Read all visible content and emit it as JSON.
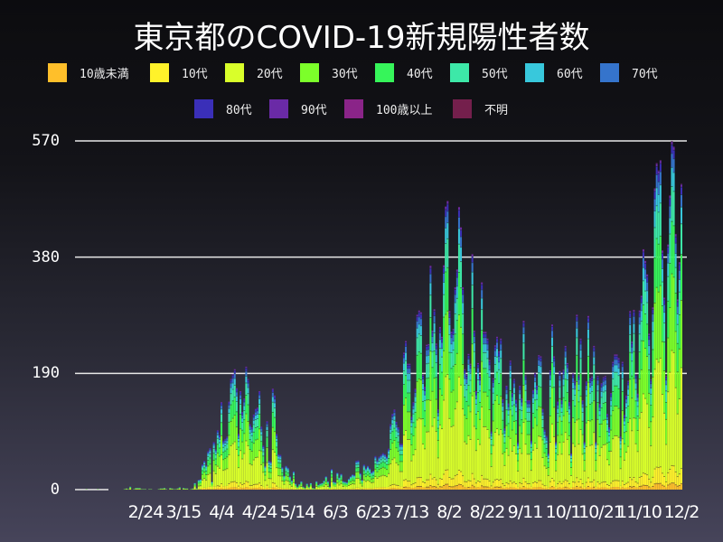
{
  "chart_data": {
    "type": "bar",
    "stacked": true,
    "title": "東京都のCOVID-19新規陽性者数",
    "xlabel": "",
    "ylabel": "",
    "first_date": "1/24",
    "last_date": "12/2",
    "ylim": [
      0,
      570
    ],
    "yticks": [
      "570",
      "380",
      "190",
      "0"
    ],
    "ytick_values": [
      570,
      380,
      190,
      0
    ],
    "xticks": [
      "2/24",
      "3/15",
      "4/4",
      "4/24",
      "5/14",
      "6/3",
      "6/23",
      "7/13",
      "8/2",
      "8/22",
      "9/11",
      "10/1",
      "10/21",
      "11/10",
      "12/2"
    ],
    "grid": "horizontal",
    "legend_position": "top",
    "totals": [
      1,
      0,
      0,
      0,
      0,
      0,
      1,
      0,
      0,
      0,
      0,
      0,
      0,
      0,
      0,
      0,
      0,
      0,
      0,
      0,
      1,
      2,
      1,
      5,
      0,
      1,
      3,
      3,
      3,
      1,
      1,
      1,
      0,
      1,
      1,
      0,
      0,
      0,
      1,
      2,
      2,
      3,
      1,
      0,
      3,
      2,
      1,
      1,
      2,
      4,
      0,
      3,
      2,
      2,
      0,
      1,
      2,
      11,
      2,
      16,
      17,
      41,
      47,
      40,
      63,
      68,
      13,
      78,
      66,
      97,
      89,
      143,
      80,
      83,
      87,
      144,
      181,
      189,
      197,
      166,
      91,
      161,
      127,
      149,
      201,
      181,
      107,
      102,
      123,
      132,
      134,
      161,
      103,
      72,
      39,
      112,
      47,
      46,
      165,
      154,
      91,
      58,
      57,
      37,
      23,
      39,
      36,
      22,
      15,
      30,
      10,
      5,
      9,
      14,
      5,
      3,
      10,
      5,
      11,
      3,
      2,
      14,
      8,
      10,
      11,
      15,
      22,
      14,
      5,
      34,
      13,
      12,
      28,
      20,
      26,
      14,
      13,
      12,
      18,
      22,
      25,
      24,
      47,
      48,
      27,
      16,
      41,
      35,
      39,
      35,
      29,
      31,
      55,
      48,
      54,
      57,
      60,
      58,
      54,
      67,
      107,
      124,
      131,
      111,
      102,
      75,
      75,
      224,
      243,
      206,
      206,
      119,
      143,
      165,
      286,
      293,
      290,
      188,
      168,
      237,
      238,
      366,
      260,
      295,
      239,
      131,
      266,
      250,
      367,
      463,
      472,
      292,
      258,
      263,
      331,
      360,
      462,
      429,
      331,
      197,
      188,
      222,
      206,
      385,
      260,
      161,
      207,
      186,
      339,
      258,
      258,
      247,
      212,
      95,
      182,
      236,
      250,
      226,
      247,
      148,
      100,
      170,
      141,
      211,
      158,
      181,
      147,
      77,
      170,
      149,
      276,
      187,
      146,
      146,
      80,
      163,
      191,
      170,
      220,
      218,
      132,
      98,
      88,
      59,
      195,
      270,
      218,
      78,
      144,
      194,
      146,
      196,
      235,
      207,
      143,
      59,
      190,
      178,
      286,
      187,
      247,
      146,
      78,
      177,
      284,
      182,
      185,
      235,
      78,
      186,
      140,
      174,
      184,
      186,
      124,
      102,
      158,
      209,
      221,
      221,
      215,
      87,
      209,
      122,
      154,
      178,
      292,
      242,
      294,
      189,
      157,
      293,
      317,
      393,
      374,
      352,
      255,
      180,
      298,
      493,
      534,
      522,
      539,
      391,
      314,
      186,
      401,
      481,
      570,
      561,
      418,
      311,
      372,
      500
    ],
    "series": [
      {
        "name": "10歳未満",
        "color": "#ffbf2a",
        "share": 0.02
      },
      {
        "name": "10代",
        "color": "#fff22a",
        "share": 0.05
      },
      {
        "name": "20代",
        "color": "#d9ff2a",
        "share": 0.33
      },
      {
        "name": "30代",
        "color": "#7cff2a",
        "share": 0.22
      },
      {
        "name": "40代",
        "color": "#36f55a",
        "share": 0.15
      },
      {
        "name": "50代",
        "color": "#3de8a8",
        "share": 0.1
      },
      {
        "name": "60代",
        "color": "#38c8dc",
        "share": 0.055
      },
      {
        "name": "70代",
        "color": "#3574cc",
        "share": 0.04
      },
      {
        "name": "80代",
        "color": "#3a2fb8",
        "share": 0.025
      },
      {
        "name": "90代",
        "color": "#6a2aa6",
        "share": 0.009
      },
      {
        "name": "100歳以上",
        "color": "#8a2488",
        "share": 0.0005
      },
      {
        "name": "不明",
        "color": "#741f4c",
        "share": 0.0005
      }
    ]
  }
}
